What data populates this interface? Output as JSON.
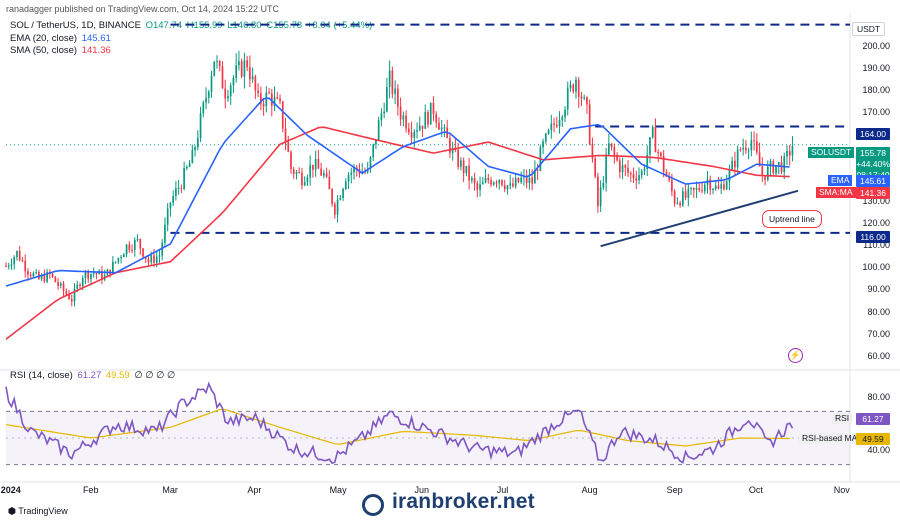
{
  "header": {
    "text": "ranadagger published on TradingView.com, Oct 14, 2024 15:22 UTC"
  },
  "symbol": {
    "name": "SOL / TetherUS, 1D, BINANCE",
    "open": "O147.74",
    "high": "H155.99",
    "low": "L146.80",
    "close": "C155.78",
    "change": "+8.04 (+5.44%)"
  },
  "indicators": {
    "ema_label": "EMA (20, close)",
    "ema_value": "145.61",
    "sma_label": "SMA (50, close)",
    "sma_value": "141.36",
    "rsi_label": "RSI (14, close)",
    "rsi_value": "61.27",
    "rsi_ma_value": "49.59",
    "rsi_zeros": "∅ ∅ ∅ ∅"
  },
  "price_axis": {
    "unit": "USDT",
    "ticks": [
      "200.00",
      "190.00",
      "180.00",
      "170.00",
      "160.00",
      "150.00",
      "140.00",
      "130.00",
      "120.00",
      "110.00",
      "100.00",
      "90.00",
      "80.00",
      "70.00",
      "60.00"
    ]
  },
  "rsi_axis": {
    "ticks": [
      "80.00",
      "40.00"
    ]
  },
  "price_tags": {
    "level_top": "164.00",
    "sym": "SOLUSDT",
    "price": "155.78",
    "pct": "+44.40%",
    "timer": "08:17:40",
    "ema_name": "EMA",
    "ema": "145.61",
    "sma_name": "SMA:MA",
    "sma": "141.36",
    "level_bottom": "116.00",
    "rsi_name": "RSI",
    "rsi": "61.27",
    "rsima_name": "RSI-based MA",
    "rsima": "49.59"
  },
  "annotations": {
    "uptrend": "Uptrend line"
  },
  "x_axis": {
    "labels": [
      "2024",
      "Feb",
      "Mar",
      "Apr",
      "May",
      "Jun",
      "Jul",
      "Aug",
      "Sep",
      "Oct",
      "Nov"
    ]
  },
  "watermark": "iranbroker.net",
  "footer": {
    "brand": "TradingView"
  },
  "colors": {
    "up": "#089981",
    "down": "#f23645",
    "ema": "#2962ff",
    "sma": "#f23645",
    "rsi": "#7e57c2",
    "rsi_ma": "#e6b800",
    "levels": "#0d2a8a"
  },
  "chart_data": [
    {
      "type": "candlestick",
      "title": "SOL / TetherUS, 1D, BINANCE",
      "ylim": [
        55,
        213
      ],
      "x": [
        "2024-01",
        "2024-02",
        "2024-03",
        "2024-04",
        "2024-05",
        "2024-06",
        "2024-07",
        "2024-08",
        "2024-09",
        "2024-10"
      ],
      "close_path": [
        [
          "2024-01-01",
          101
        ],
        [
          "2024-01-05",
          107
        ],
        [
          "2024-01-09",
          99
        ],
        [
          "2024-01-13",
          95
        ],
        [
          "2024-01-17",
          97
        ],
        [
          "2024-01-21",
          91
        ],
        [
          "2024-01-25",
          86
        ],
        [
          "2024-01-29",
          97
        ],
        [
          "2024-02-02",
          98
        ],
        [
          "2024-02-06",
          96
        ],
        [
          "2024-02-10",
          103
        ],
        [
          "2024-02-14",
          110
        ],
        [
          "2024-02-18",
          112
        ],
        [
          "2024-02-22",
          103
        ],
        [
          "2024-02-26",
          106
        ],
        [
          "2024-03-01",
          130
        ],
        [
          "2024-03-05",
          139
        ],
        [
          "2024-03-09",
          150
        ],
        [
          "2024-03-13",
          172
        ],
        [
          "2024-03-17",
          195
        ],
        [
          "2024-03-21",
          180
        ],
        [
          "2024-03-25",
          188
        ],
        [
          "2024-03-29",
          193
        ],
        [
          "2024-04-02",
          175
        ],
        [
          "2024-04-06",
          178
        ],
        [
          "2024-04-10",
          172
        ],
        [
          "2024-04-14",
          145
        ],
        [
          "2024-04-18",
          141
        ],
        [
          "2024-04-22",
          147
        ],
        [
          "2024-04-26",
          142
        ],
        [
          "2024-04-30",
          127
        ],
        [
          "2024-05-04",
          142
        ],
        [
          "2024-05-08",
          145
        ],
        [
          "2024-05-12",
          143
        ],
        [
          "2024-05-16",
          165
        ],
        [
          "2024-05-20",
          185
        ],
        [
          "2024-05-24",
          170
        ],
        [
          "2024-05-28",
          163
        ],
        [
          "2024-06-01",
          166
        ],
        [
          "2024-06-05",
          172
        ],
        [
          "2024-06-09",
          160
        ],
        [
          "2024-06-13",
          150
        ],
        [
          "2024-06-17",
          143
        ],
        [
          "2024-06-21",
          135
        ],
        [
          "2024-06-25",
          140
        ],
        [
          "2024-06-29",
          141
        ],
        [
          "2024-07-03",
          136
        ],
        [
          "2024-07-07",
          140
        ],
        [
          "2024-07-11",
          139
        ],
        [
          "2024-07-15",
          155
        ],
        [
          "2024-07-19",
          165
        ],
        [
          "2024-07-23",
          175
        ],
        [
          "2024-07-27",
          186
        ],
        [
          "2024-07-31",
          170
        ],
        [
          "2024-08-04",
          128
        ],
        [
          "2024-08-08",
          155
        ],
        [
          "2024-08-12",
          146
        ],
        [
          "2024-08-16",
          142
        ],
        [
          "2024-08-20",
          143
        ],
        [
          "2024-08-24",
          160
        ],
        [
          "2024-08-28",
          145
        ],
        [
          "2024-09-01",
          131
        ],
        [
          "2024-09-05",
          132
        ],
        [
          "2024-09-09",
          135
        ],
        [
          "2024-09-13",
          140
        ],
        [
          "2024-09-17",
          135
        ],
        [
          "2024-09-21",
          143
        ],
        [
          "2024-09-25",
          154
        ],
        [
          "2024-09-29",
          158
        ],
        [
          "2024-10-03",
          142
        ],
        [
          "2024-10-07",
          146
        ],
        [
          "2024-10-11",
          147
        ],
        [
          "2024-10-14",
          155.78
        ]
      ],
      "ema20_path": [
        [
          "2024-01-01",
          92
        ],
        [
          "2024-01-20",
          99
        ],
        [
          "2024-02-10",
          98
        ],
        [
          "2024-03-01",
          111
        ],
        [
          "2024-03-20",
          156
        ],
        [
          "2024-04-05",
          178
        ],
        [
          "2024-04-20",
          160
        ],
        [
          "2024-05-10",
          143
        ],
        [
          "2024-05-25",
          155
        ],
        [
          "2024-06-10",
          162
        ],
        [
          "2024-06-25",
          146
        ],
        [
          "2024-07-10",
          141
        ],
        [
          "2024-07-25",
          163
        ],
        [
          "2024-08-05",
          165
        ],
        [
          "2024-08-20",
          147
        ],
        [
          "2024-09-05",
          138
        ],
        [
          "2024-09-20",
          140
        ],
        [
          "2024-10-01",
          147
        ],
        [
          "2024-10-14",
          145.61
        ]
      ],
      "sma50_path": [
        [
          "2024-01-01",
          68
        ],
        [
          "2024-01-20",
          86
        ],
        [
          "2024-02-10",
          98
        ],
        [
          "2024-03-01",
          103
        ],
        [
          "2024-03-20",
          125
        ],
        [
          "2024-04-10",
          156
        ],
        [
          "2024-04-25",
          164
        ],
        [
          "2024-05-15",
          158
        ],
        [
          "2024-06-05",
          152
        ],
        [
          "2024-06-25",
          157
        ],
        [
          "2024-07-15",
          149
        ],
        [
          "2024-08-05",
          151
        ],
        [
          "2024-08-25",
          150
        ],
        [
          "2024-09-15",
          146
        ],
        [
          "2024-10-01",
          142
        ],
        [
          "2024-10-14",
          141.36
        ]
      ],
      "levels": [
        210,
        164,
        116
      ],
      "uptrend_line": [
        [
          "2024-08-05",
          110
        ],
        [
          "2024-10-16",
          135
        ]
      ],
      "last_close": 155.78
    },
    {
      "type": "line",
      "title": "RSI (14, close)",
      "ylim": [
        20,
        95
      ],
      "bands": [
        70,
        30
      ],
      "rsi_path": [
        [
          "2024-01-01",
          85
        ],
        [
          "2024-01-10",
          55
        ],
        [
          "2024-01-25",
          38
        ],
        [
          "2024-02-10",
          60
        ],
        [
          "2024-02-25",
          55
        ],
        [
          "2024-03-05",
          75
        ],
        [
          "2024-03-15",
          88
        ],
        [
          "2024-03-22",
          62
        ],
        [
          "2024-04-01",
          65
        ],
        [
          "2024-04-15",
          42
        ],
        [
          "2024-04-30",
          35
        ],
        [
          "2024-05-10",
          50
        ],
        [
          "2024-05-20",
          68
        ],
        [
          "2024-06-05",
          55
        ],
        [
          "2024-06-20",
          42
        ],
        [
          "2024-07-05",
          38
        ],
        [
          "2024-07-20",
          62
        ],
        [
          "2024-07-28",
          70
        ],
        [
          "2024-08-05",
          32
        ],
        [
          "2024-08-12",
          55
        ],
        [
          "2024-08-25",
          48
        ],
        [
          "2024-09-05",
          35
        ],
        [
          "2024-09-15",
          42
        ],
        [
          "2024-09-28",
          66
        ],
        [
          "2024-10-05",
          45
        ],
        [
          "2024-10-14",
          61.27
        ]
      ],
      "rsi_ma_path": [
        [
          "2024-01-01",
          60
        ],
        [
          "2024-02-01",
          50
        ],
        [
          "2024-03-01",
          58
        ],
        [
          "2024-03-20",
          72
        ],
        [
          "2024-04-10",
          58
        ],
        [
          "2024-05-01",
          45
        ],
        [
          "2024-05-25",
          55
        ],
        [
          "2024-06-20",
          52
        ],
        [
          "2024-07-10",
          48
        ],
        [
          "2024-07-28",
          56
        ],
        [
          "2024-08-15",
          48
        ],
        [
          "2024-09-05",
          44
        ],
        [
          "2024-09-25",
          50
        ],
        [
          "2024-10-14",
          49.59
        ]
      ],
      "last_rsi": 61.27,
      "last_rsi_ma": 49.59
    }
  ]
}
